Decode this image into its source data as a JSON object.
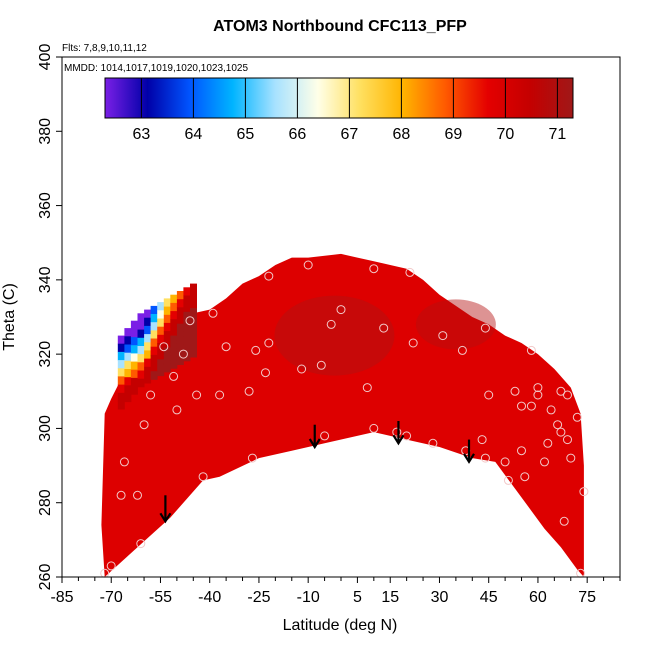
{
  "chart_data": {
    "type": "heatmap",
    "title": "ATOM3 Northbound CFC113_PFP",
    "flights_label": "Flts: 7,8,9,10,11,12",
    "dates_label": "MMDD: 1014,1017,1019,1020,1023,1025",
    "xlabel": "Latitude (deg N)",
    "ylabel": "Theta (C)",
    "xlim": [
      -85,
      85
    ],
    "ylim": [
      260,
      400
    ],
    "x_ticks": [
      -85,
      -70,
      -55,
      -40,
      -25,
      -10,
      5,
      15,
      30,
      45,
      60,
      75
    ],
    "x_tick_labels": [
      "-85",
      "-70",
      "-55",
      "-40",
      "-25",
      "-10",
      "5",
      "15",
      "30",
      "45",
      "60",
      "75"
    ],
    "y_ticks": [
      260,
      280,
      300,
      320,
      340,
      360,
      380,
      400
    ],
    "y_tick_labels": [
      "260",
      "280",
      "300",
      "320",
      "340",
      "360",
      "380",
      "400"
    ],
    "colorbar": {
      "min": 62.3,
      "max": 71.3,
      "ticks": [
        63,
        64,
        65,
        66,
        67,
        68,
        69,
        70,
        71
      ],
      "tick_labels": [
        "63",
        "64",
        "65",
        "66",
        "67",
        "68",
        "69",
        "70",
        "71"
      ],
      "colors": [
        "#7a1fe6",
        "#0000a8",
        "#0055ff",
        "#00b4ff",
        "#a8e2ff",
        "#ffffe8",
        "#ffe060",
        "#ffb400",
        "#ff5a00",
        "#e40000",
        "#c40000",
        "#a01818"
      ]
    },
    "filled_region": {
      "lower_boundary": [
        [
          -72,
          260
        ],
        [
          -62,
          268
        ],
        [
          -52,
          276
        ],
        [
          -42,
          286
        ],
        [
          -37,
          287
        ],
        [
          -25,
          292
        ],
        [
          -15,
          294
        ],
        [
          -5,
          296
        ],
        [
          10,
          299
        ],
        [
          20,
          297
        ],
        [
          30,
          295
        ],
        [
          40,
          292
        ],
        [
          47,
          291
        ],
        [
          52,
          285
        ],
        [
          57,
          279
        ],
        [
          62,
          273
        ],
        [
          67,
          268
        ],
        [
          72,
          262
        ],
        [
          74,
          260
        ]
      ],
      "upper_boundary": [
        [
          -73,
          274
        ],
        [
          -72,
          304
        ],
        [
          -70,
          308
        ],
        [
          -66,
          315
        ],
        [
          -62,
          320
        ],
        [
          -58,
          325
        ],
        [
          -55,
          328
        ],
        [
          -50,
          330
        ],
        [
          -45,
          331
        ],
        [
          -40,
          332
        ],
        [
          -35,
          335
        ],
        [
          -30,
          339
        ],
        [
          -25,
          341
        ],
        [
          -20,
          344
        ],
        [
          -15,
          346
        ],
        [
          -10,
          346
        ],
        [
          0,
          347
        ],
        [
          5,
          346
        ],
        [
          10,
          345
        ],
        [
          15,
          344
        ],
        [
          20,
          343
        ],
        [
          25,
          340
        ],
        [
          30,
          336
        ],
        [
          35,
          333
        ],
        [
          40,
          330
        ],
        [
          45,
          328
        ],
        [
          50,
          325
        ],
        [
          55,
          323
        ],
        [
          60,
          320
        ],
        [
          65,
          316
        ],
        [
          70,
          311
        ],
        [
          73,
          304
        ],
        [
          74,
          290
        ],
        [
          74,
          260
        ]
      ],
      "dominant_value": 70.6,
      "low_value_patch": {
        "lat_range": [
          -68,
          -55
        ],
        "theta_range": [
          306,
          330
        ],
        "min_value": 62.5
      }
    },
    "observations": [
      {
        "lat": -72,
        "theta": 261,
        "value": 70.5
      },
      {
        "lat": -70,
        "theta": 263,
        "value": 70.6
      },
      {
        "lat": -67,
        "theta": 282,
        "value": 70.4
      },
      {
        "lat": -66,
        "theta": 291,
        "value": 70.5
      },
      {
        "lat": -62,
        "theta": 282,
        "value": 70.6
      },
      {
        "lat": -61,
        "theta": 269,
        "value": 70.7
      },
      {
        "lat": -60,
        "theta": 301,
        "value": 70.3
      },
      {
        "lat": -58,
        "theta": 309,
        "value": 69.8
      },
      {
        "lat": -54,
        "theta": 322,
        "value": 70.0
      },
      {
        "lat": -51,
        "theta": 314,
        "value": 70.2
      },
      {
        "lat": -50,
        "theta": 305,
        "value": 70.4
      },
      {
        "lat": -48,
        "theta": 320,
        "value": 70.5
      },
      {
        "lat": -46,
        "theta": 329,
        "value": 69.9
      },
      {
        "lat": -44,
        "theta": 309,
        "value": 70.5
      },
      {
        "lat": -42,
        "theta": 287,
        "value": 70.8
      },
      {
        "lat": -39,
        "theta": 331,
        "value": 69.8
      },
      {
        "lat": -37,
        "theta": 309,
        "value": 70.6
      },
      {
        "lat": -35,
        "theta": 322,
        "value": 70.6
      },
      {
        "lat": -28,
        "theta": 310,
        "value": 70.7
      },
      {
        "lat": -27,
        "theta": 292,
        "value": 70.7
      },
      {
        "lat": -26,
        "theta": 321,
        "value": 70.6
      },
      {
        "lat": -23,
        "theta": 315,
        "value": 70.7
      },
      {
        "lat": -22,
        "theta": 323,
        "value": 70.6
      },
      {
        "lat": -22,
        "theta": 341,
        "value": 70.8
      },
      {
        "lat": -12,
        "theta": 316,
        "value": 70.8
      },
      {
        "lat": -10,
        "theta": 344,
        "value": 70.9
      },
      {
        "lat": -6,
        "theta": 317,
        "value": 70.8
      },
      {
        "lat": -5,
        "theta": 298,
        "value": 70.7
      },
      {
        "lat": -3,
        "theta": 328,
        "value": 70.9
      },
      {
        "lat": 0,
        "theta": 332,
        "value": 70.9
      },
      {
        "lat": 8,
        "theta": 311,
        "value": 70.7
      },
      {
        "lat": 10,
        "theta": 300,
        "value": 70.6
      },
      {
        "lat": 10,
        "theta": 343,
        "value": 70.9
      },
      {
        "lat": 13,
        "theta": 327,
        "value": 70.8
      },
      {
        "lat": 17,
        "theta": 299,
        "value": 70.6
      },
      {
        "lat": 20,
        "theta": 298,
        "value": 70.7
      },
      {
        "lat": 21,
        "theta": 342,
        "value": 70.9
      },
      {
        "lat": 22,
        "theta": 323,
        "value": 70.9
      },
      {
        "lat": 28,
        "theta": 296,
        "value": 70.6
      },
      {
        "lat": 31,
        "theta": 325,
        "value": 71.0
      },
      {
        "lat": 37,
        "theta": 321,
        "value": 70.8
      },
      {
        "lat": 38,
        "theta": 294,
        "value": 70.6
      },
      {
        "lat": 43,
        "theta": 297,
        "value": 70.5
      },
      {
        "lat": 44,
        "theta": 292,
        "value": 70.6
      },
      {
        "lat": 44,
        "theta": 327,
        "value": 70.8
      },
      {
        "lat": 45,
        "theta": 309,
        "value": 70.7
      },
      {
        "lat": 50,
        "theta": 291,
        "value": 70.5
      },
      {
        "lat": 51,
        "theta": 286,
        "value": 70.5
      },
      {
        "lat": 53,
        "theta": 310,
        "value": 70.6
      },
      {
        "lat": 55,
        "theta": 294,
        "value": 70.5
      },
      {
        "lat": 55,
        "theta": 306,
        "value": 70.6
      },
      {
        "lat": 56,
        "theta": 287,
        "value": 70.4
      },
      {
        "lat": 58,
        "theta": 321,
        "value": 70.7
      },
      {
        "lat": 58,
        "theta": 306,
        "value": 70.5
      },
      {
        "lat": 60,
        "theta": 309,
        "value": 70.5
      },
      {
        "lat": 60,
        "theta": 311,
        "value": 70.5
      },
      {
        "lat": 62,
        "theta": 291,
        "value": 70.4
      },
      {
        "lat": 63,
        "theta": 296,
        "value": 70.4
      },
      {
        "lat": 64,
        "theta": 305,
        "value": 70.5
      },
      {
        "lat": 66,
        "theta": 301,
        "value": 70.4
      },
      {
        "lat": 67,
        "theta": 299,
        "value": 70.4
      },
      {
        "lat": 67,
        "theta": 310,
        "value": 70.5
      },
      {
        "lat": 68,
        "theta": 275,
        "value": 70.3
      },
      {
        "lat": 69,
        "theta": 297,
        "value": 70.4
      },
      {
        "lat": 69,
        "theta": 309,
        "value": 70.5
      },
      {
        "lat": 70,
        "theta": 292,
        "value": 70.3
      },
      {
        "lat": 72,
        "theta": 303,
        "value": 70.4
      },
      {
        "lat": 73,
        "theta": 261,
        "value": 70.2
      },
      {
        "lat": 74,
        "theta": 283,
        "value": 70.2
      }
    ],
    "tropopause_arrows": [
      {
        "lat": -53.5,
        "theta_top": 282,
        "theta_bottom": 275
      },
      {
        "lat": -8,
        "theta_top": 301,
        "theta_bottom": 295
      },
      {
        "lat": 17.5,
        "theta_top": 302,
        "theta_bottom": 296
      },
      {
        "lat": 39,
        "theta_top": 297,
        "theta_bottom": 291
      }
    ]
  }
}
